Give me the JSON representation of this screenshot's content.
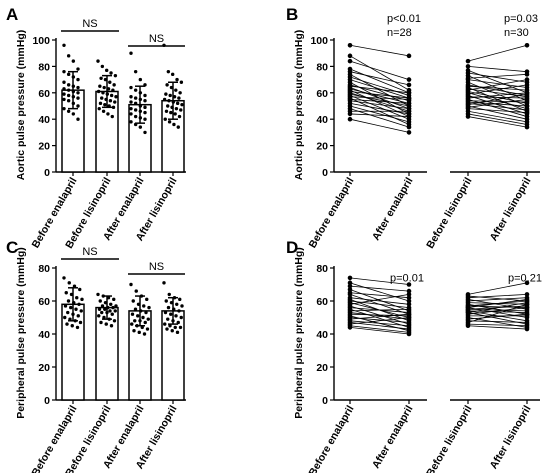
{
  "chart_data": [
    {
      "panel_label": "A",
      "type": "bar",
      "ylabel": "Aortic pulse pressure (mmHg)",
      "ylim": [
        0,
        100
      ],
      "yticks": [
        0,
        20,
        40,
        60,
        80,
        100
      ],
      "categories": [
        "Before enalapril",
        "Before lisinopril",
        "After enalapril",
        "After lisinopril"
      ],
      "values": [
        62,
        61,
        51,
        54
      ],
      "error_sd": [
        14,
        12,
        14,
        14
      ],
      "points": [
        [
          96,
          88,
          84,
          78,
          76,
          74,
          72,
          70,
          68,
          66,
          65,
          64,
          63,
          62,
          61,
          60,
          59,
          58,
          57,
          56,
          55,
          54,
          52,
          50,
          48,
          46,
          44,
          40
        ],
        [
          84,
          80,
          77,
          75,
          73,
          71,
          70,
          68,
          66,
          65,
          64,
          63,
          62,
          61,
          60,
          59,
          58,
          57,
          56,
          55,
          54,
          53,
          52,
          51,
          50,
          49,
          48,
          46,
          44,
          42
        ],
        [
          90,
          76,
          70,
          66,
          64,
          62,
          60,
          58,
          57,
          56,
          55,
          54,
          53,
          52,
          50,
          49,
          48,
          47,
          46,
          45,
          44,
          42,
          41,
          40,
          38,
          36,
          34,
          30
        ],
        [
          96,
          76,
          74,
          70,
          68,
          66,
          64,
          62,
          60,
          59,
          58,
          57,
          56,
          55,
          54,
          53,
          52,
          51,
          50,
          49,
          48,
          47,
          46,
          45,
          44,
          42,
          40,
          38,
          36,
          34
        ]
      ],
      "comparisons": [
        {
          "from": 0,
          "to": 1,
          "label": "NS"
        },
        {
          "from": 2,
          "to": 3,
          "label": "NS"
        }
      ]
    },
    {
      "panel_label": "B",
      "type": "line",
      "ylabel": "Aortic pulse pressure (mmHg)",
      "ylim": [
        0,
        100
      ],
      "yticks": [
        0,
        20,
        40,
        60,
        80,
        100
      ],
      "categories": [
        "Before enalapril",
        "After enalapril",
        "Before lisinopril",
        "After lisinopril"
      ],
      "groups": [
        {
          "annotation": [
            "p<0.01",
            "n=28"
          ],
          "before": [
            96,
            88,
            84,
            78,
            76,
            74,
            72,
            70,
            68,
            66,
            65,
            64,
            63,
            62,
            61,
            60,
            59,
            58,
            57,
            56,
            55,
            54,
            52,
            50,
            48,
            46,
            44,
            40
          ],
          "after": [
            88,
            62,
            70,
            60,
            66,
            50,
            58,
            56,
            44,
            54,
            60,
            48,
            52,
            42,
            56,
            46,
            50,
            40,
            55,
            36,
            52,
            48,
            44,
            38,
            34,
            46,
            42,
            30
          ]
        },
        {
          "annotation": [
            "p=0.03",
            "n=30"
          ],
          "before": [
            84,
            80,
            77,
            75,
            73,
            71,
            70,
            68,
            66,
            65,
            64,
            63,
            62,
            61,
            60,
            59,
            58,
            57,
            56,
            55,
            54,
            53,
            52,
            51,
            50,
            49,
            48,
            46,
            44,
            42
          ],
          "after": [
            96,
            76,
            60,
            68,
            54,
            74,
            64,
            50,
            58,
            62,
            46,
            57,
            70,
            52,
            48,
            66,
            44,
            56,
            60,
            42,
            53,
            50,
            47,
            59,
            40,
            55,
            45,
            38,
            36,
            34
          ]
        }
      ]
    },
    {
      "panel_label": "C",
      "type": "bar",
      "ylabel": "Peripheral pulse pressure (mmHg)",
      "ylim": [
        0,
        80
      ],
      "yticks": [
        0,
        20,
        40,
        60,
        80
      ],
      "categories": [
        "Before enalapril",
        "Before lisinopril",
        "After enalapril",
        "After lisinopril"
      ],
      "values": [
        58,
        56,
        54,
        54
      ],
      "error_sd": [
        10,
        7,
        9,
        8
      ],
      "points": [
        [
          74,
          71,
          69,
          67,
          65,
          64,
          62,
          61,
          60,
          59,
          58,
          57,
          56,
          55,
          54,
          53,
          52,
          51,
          50,
          49,
          48,
          47,
          46,
          45,
          44
        ],
        [
          64,
          63,
          62,
          61,
          60,
          59,
          58,
          57,
          57,
          56,
          56,
          55,
          55,
          54,
          54,
          53,
          53,
          52,
          51,
          50,
          49,
          48,
          47,
          46,
          45
        ],
        [
          70,
          66,
          63,
          61,
          60,
          58,
          57,
          56,
          55,
          54,
          53,
          52,
          51,
          50,
          49,
          48,
          48,
          47,
          46,
          45,
          44,
          43,
          42,
          41,
          40
        ],
        [
          71,
          64,
          62,
          61,
          60,
          59,
          58,
          57,
          56,
          55,
          54,
          53,
          52,
          51,
          50,
          49,
          48,
          47,
          46,
          45,
          44,
          44,
          43,
          42,
          41
        ]
      ],
      "comparisons": [
        {
          "from": 0,
          "to": 1,
          "label": "NS"
        },
        {
          "from": 2,
          "to": 3,
          "label": "NS"
        }
      ]
    },
    {
      "panel_label": "D",
      "type": "line",
      "ylabel": "Peripheral pulse pressure (mmHg)",
      "ylim": [
        0,
        80
      ],
      "yticks": [
        0,
        20,
        40,
        60,
        80
      ],
      "categories": [
        "Before enalapril",
        "After enalapril",
        "Before lisinopril",
        "After lisinopril"
      ],
      "groups": [
        {
          "annotation": [
            "p=0.01"
          ],
          "before": [
            74,
            71,
            69,
            67,
            65,
            64,
            62,
            61,
            60,
            59,
            58,
            57,
            56,
            55,
            54,
            53,
            52,
            51,
            50,
            49,
            48,
            47,
            46,
            45,
            44
          ],
          "after": [
            70,
            60,
            66,
            54,
            62,
            52,
            58,
            48,
            56,
            50,
            64,
            46,
            53,
            44,
            55,
            49,
            51,
            42,
            47,
            52,
            45,
            43,
            50,
            41,
            40
          ]
        },
        {
          "annotation": [
            "p=0.21"
          ],
          "before": [
            64,
            63,
            62,
            61,
            60,
            59,
            58,
            57,
            57,
            56,
            56,
            55,
            55,
            54,
            54,
            53,
            53,
            52,
            51,
            50,
            49,
            48,
            47,
            46,
            45
          ],
          "after": [
            71,
            60,
            64,
            55,
            62,
            58,
            52,
            60,
            56,
            50,
            61,
            54,
            57,
            48,
            53,
            59,
            46,
            56,
            51,
            44,
            52,
            47,
            58,
            45,
            43
          ]
        }
      ]
    }
  ]
}
